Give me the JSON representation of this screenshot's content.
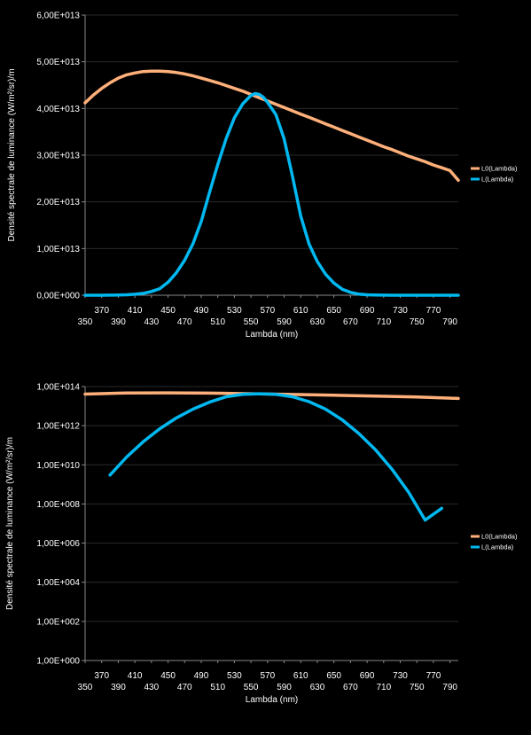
{
  "chart_data": [
    {
      "type": "line",
      "xlabel": "Lambda (nm)",
      "ylabel": "Densité spectrale de luminance (W/m²/sr)/m",
      "xlim": [
        350,
        800
      ],
      "ylim": [
        0,
        60000000000000.0
      ],
      "yscale": "linear",
      "x_ticks_row1": [
        "370",
        "410",
        "450",
        "490",
        "530",
        "570",
        "610",
        "650",
        "690",
        "730",
        "770"
      ],
      "x_ticks_row2": [
        "350",
        "390",
        "430",
        "470",
        "510",
        "550",
        "590",
        "630",
        "670",
        "710",
        "750",
        "790"
      ],
      "y_ticks": [
        "0,00E+000",
        "1,00E+013",
        "2,00E+013",
        "3,00E+013",
        "4,00E+013",
        "5,00E+013",
        "6,00E+013"
      ],
      "legend_position": "right",
      "grid": true,
      "series": [
        {
          "name": "L0(Lambda)",
          "color": "#FFB07A",
          "x": [
            350,
            360,
            370,
            380,
            390,
            400,
            410,
            420,
            430,
            440,
            450,
            460,
            470,
            480,
            490,
            500,
            510,
            520,
            530,
            540,
            550,
            560,
            570,
            580,
            590,
            600,
            610,
            620,
            630,
            640,
            650,
            660,
            670,
            680,
            690,
            700,
            710,
            720,
            730,
            740,
            750,
            760,
            770,
            780,
            790,
            800
          ],
          "y": [
            41200000000000.0,
            42900000000000.0,
            44300000000000.0,
            45500000000000.0,
            46500000000000.0,
            47200000000000.0,
            47600000000000.0,
            47900000000000.0,
            48000000000000.0,
            48000000000000.0,
            47900000000000.0,
            47700000000000.0,
            47400000000000.0,
            47000000000000.0,
            46500000000000.0,
            46000000000000.0,
            45500000000000.0,
            44900000000000.0,
            44300000000000.0,
            43700000000000.0,
            43000000000000.0,
            42300000000000.0,
            41600000000000.0,
            40900000000000.0,
            40200000000000.0,
            39500000000000.0,
            38800000000000.0,
            38100000000000.0,
            37400000000000.0,
            36700000000000.0,
            36000000000000.0,
            35300000000000.0,
            34600000000000.0,
            33900000000000.0,
            33200000000000.0,
            32500000000000.0,
            31800000000000.0,
            31200000000000.0,
            30500000000000.0,
            29800000000000.0,
            29200000000000.0,
            28600000000000.0,
            27900000000000.0,
            27300000000000.0,
            26700000000000.0,
            24600000000000.0
          ]
        },
        {
          "name": "L(Lambda)",
          "color": "#00B8F0",
          "x": [
            350,
            360,
            370,
            380,
            390,
            400,
            410,
            420,
            430,
            440,
            450,
            460,
            470,
            480,
            490,
            500,
            510,
            520,
            530,
            540,
            550,
            555,
            560,
            565,
            570,
            580,
            590,
            600,
            610,
            620,
            630,
            640,
            650,
            660,
            670,
            680,
            690,
            700,
            710,
            720,
            730,
            740,
            750,
            760,
            770,
            780,
            790,
            800
          ],
          "y": [
            0,
            0,
            0,
            20000000000.0,
            50000000000.0,
            100000000000.0,
            200000000000.0,
            400000000000.0,
            800000000000.0,
            1400000000000.0,
            2800000000000.0,
            4800000000000.0,
            7500000000000.0,
            11000000000000.0,
            15800000000000.0,
            22000000000000.0,
            28000000000000.0,
            33500000000000.0,
            38000000000000.0,
            41000000000000.0,
            42800000000000.0,
            43200000000000.0,
            43000000000000.0,
            42400000000000.0,
            41300000000000.0,
            38700000000000.0,
            33500000000000.0,
            25500000000000.0,
            17000000000000.0,
            11000000000000.0,
            7200000000000.0,
            4500000000000.0,
            2600000000000.0,
            1300000000000.0,
            600000000000.0,
            250000000000.0,
            100000000000.0,
            40000000000.0,
            10000000000.0,
            0,
            0,
            0,
            0,
            0,
            0,
            0,
            0,
            0
          ]
        }
      ]
    },
    {
      "type": "line",
      "xlabel": "Lambda (nm)",
      "ylabel": "Densité spectrale de luminance (W/m²/sr)/m",
      "xlim": [
        350,
        800
      ],
      "yscale": "log",
      "ylim": [
        1,
        100000000000000.0
      ],
      "x_ticks_row1": [
        "370",
        "410",
        "450",
        "490",
        "530",
        "570",
        "610",
        "650",
        "690",
        "730",
        "770"
      ],
      "x_ticks_row2": [
        "350",
        "390",
        "430",
        "470",
        "510",
        "550",
        "590",
        "630",
        "670",
        "710",
        "750",
        "790"
      ],
      "y_ticks": [
        "1,00E+000",
        "1,00E+002",
        "1,00E+004",
        "1,00E+006",
        "1,00E+008",
        "1,00E+010",
        "1,00E+012",
        "1,00E+014"
      ],
      "legend_position": "right",
      "grid": true,
      "series": [
        {
          "name": "L0(Lambda)",
          "color": "#FFB07A",
          "x": [
            350,
            400,
            450,
            500,
            550,
            600,
            650,
            700,
            750,
            800
          ],
          "y": [
            41200000000000.0,
            47200000000000.0,
            47900000000000.0,
            46000000000000.0,
            43000000000000.0,
            39500000000000.0,
            36000000000000.0,
            32500000000000.0,
            29200000000000.0,
            24600000000000.0
          ]
        },
        {
          "name": "L(Lambda)",
          "color": "#00B8F0",
          "x": [
            380,
            400,
            420,
            440,
            460,
            480,
            500,
            520,
            540,
            560,
            580,
            600,
            620,
            640,
            660,
            680,
            700,
            720,
            740,
            760,
            780
          ],
          "y": [
            3000000000.0,
            25000000000.0,
            150000000000.0,
            700000000000.0,
            2500000000000.0,
            7000000000000.0,
            16000000000000.0,
            30000000000000.0,
            40000000000000.0,
            43000000000000.0,
            40000000000000.0,
            30000000000000.0,
            17000000000000.0,
            7000000000000.0,
            2000000000000.0,
            400000000000.0,
            60000000000.0,
            6000000000.0,
            400000000.0,
            15000000.0,
            60000000.0
          ]
        }
      ]
    }
  ]
}
